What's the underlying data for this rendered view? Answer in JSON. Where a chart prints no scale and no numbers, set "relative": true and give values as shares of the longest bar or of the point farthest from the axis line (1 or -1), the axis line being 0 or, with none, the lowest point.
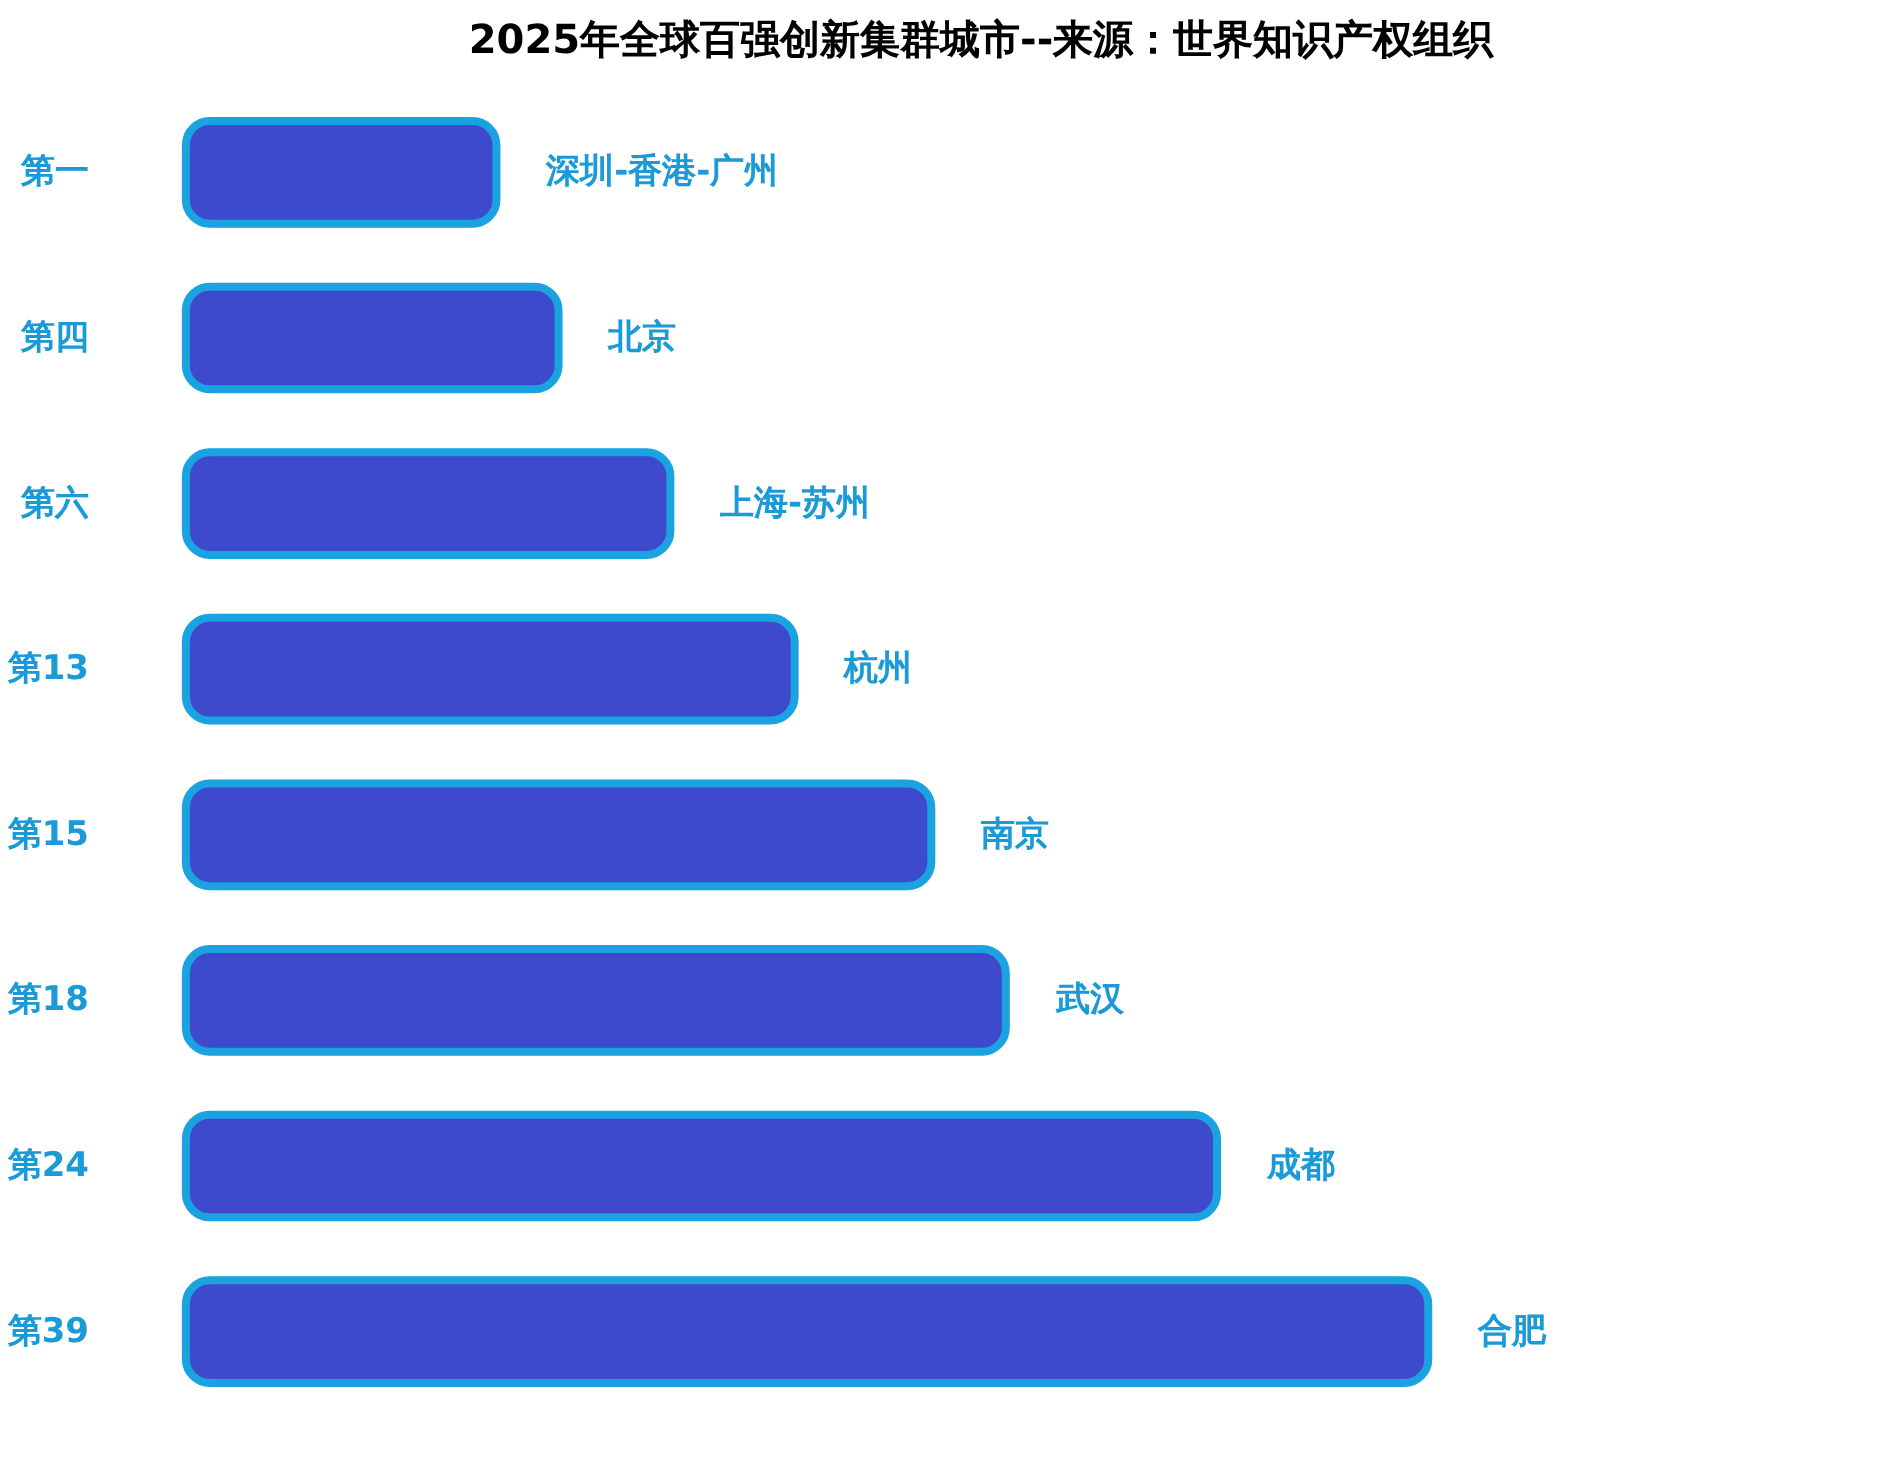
{
  "chart_data": {
    "type": "bar",
    "orientation": "horizontal",
    "relative": true,
    "title": "2025年全球百强创新集群城市--来源：世界知识产权组织",
    "categories": [
      "第一",
      "第四",
      "第六",
      "第13",
      "第15",
      "第18",
      "第24",
      "第39"
    ],
    "values": [
      0.25,
      0.3,
      0.39,
      0.49,
      0.6,
      0.66,
      0.83,
      1.0
    ],
    "color": "#3d4acb",
    "grid": false,
    "annotations": [
      {
        "text": "深圳-香港-广州",
        "x": 0.25,
        "y": "第一"
      },
      {
        "text": "北京",
        "x": 0.3,
        "y": "第四"
      },
      {
        "text": "上海-苏州",
        "x": 0.39,
        "y": "第六"
      },
      {
        "text": "杭州",
        "x": 0.49,
        "y": "第13"
      },
      {
        "text": "南京",
        "x": 0.6,
        "y": "第15"
      },
      {
        "text": "武汉",
        "x": 0.66,
        "y": "第18"
      },
      {
        "text": "成都",
        "x": 0.83,
        "y": "第24"
      },
      {
        "text": "合肥",
        "x": 1.0,
        "y": "第39"
      }
    ]
  }
}
